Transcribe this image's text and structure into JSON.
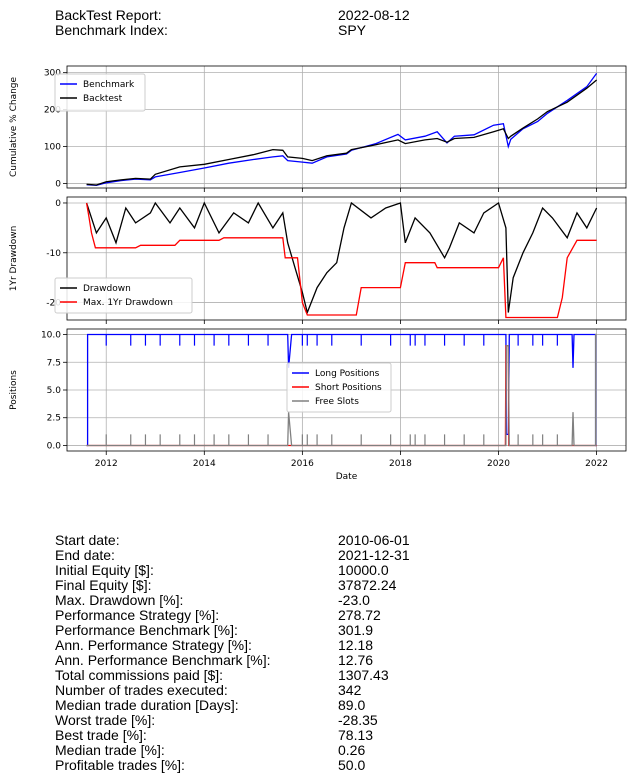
{
  "header": {
    "rows": [
      {
        "label": "BackTest Report:",
        "value": "2022-08-12"
      },
      {
        "label": "Benchmark Index:",
        "value": "SPY"
      }
    ]
  },
  "colors": {
    "benchmark": "#0000ff",
    "backtest": "#000000",
    "drawdown": "#000000",
    "max_drawdown": "#ff0000",
    "long": "#0000ff",
    "short": "#ff0000",
    "free": "#808080",
    "grid": "#b0b0b0"
  },
  "chart_data": [
    {
      "type": "line",
      "ylabel": "Cumulative % Change",
      "ylim": [
        -12,
        318
      ],
      "yticks": [
        0,
        100,
        200,
        300
      ],
      "grid": true,
      "legend": "top-left",
      "series": [
        {
          "name": "Benchmark",
          "color": "#0000ff",
          "points": [
            [
              2011.6,
              -3
            ],
            [
              2011.8,
              -5
            ],
            [
              2012.0,
              2
            ],
            [
              2012.3,
              8
            ],
            [
              2012.6,
              12
            ],
            [
              2012.9,
              10
            ],
            [
              2013.0,
              18
            ],
            [
              2013.5,
              30
            ],
            [
              2014.0,
              42
            ],
            [
              2014.5,
              55
            ],
            [
              2015.0,
              65
            ],
            [
              2015.4,
              72
            ],
            [
              2015.6,
              75
            ],
            [
              2015.7,
              62
            ],
            [
              2016.0,
              58
            ],
            [
              2016.2,
              55
            ],
            [
              2016.5,
              72
            ],
            [
              2016.9,
              80
            ],
            [
              2017.0,
              90
            ],
            [
              2017.5,
              108
            ],
            [
              2017.95,
              133
            ],
            [
              2018.1,
              118
            ],
            [
              2018.5,
              128
            ],
            [
              2018.75,
              140
            ],
            [
              2018.95,
              110
            ],
            [
              2019.1,
              128
            ],
            [
              2019.5,
              132
            ],
            [
              2019.9,
              158
            ],
            [
              2020.1,
              162
            ],
            [
              2020.2,
              100
            ],
            [
              2020.25,
              120
            ],
            [
              2020.5,
              148
            ],
            [
              2020.8,
              168
            ],
            [
              2021.0,
              190
            ],
            [
              2021.4,
              225
            ],
            [
              2021.8,
              262
            ],
            [
              2022.0,
              298
            ]
          ]
        },
        {
          "name": "Backtest",
          "color": "#000000",
          "points": [
            [
              2011.6,
              -2
            ],
            [
              2011.8,
              -4
            ],
            [
              2012.0,
              5
            ],
            [
              2012.3,
              10
            ],
            [
              2012.6,
              14
            ],
            [
              2012.9,
              12
            ],
            [
              2013.0,
              25
            ],
            [
              2013.5,
              45
            ],
            [
              2014.0,
              52
            ],
            [
              2014.5,
              65
            ],
            [
              2015.0,
              78
            ],
            [
              2015.4,
              92
            ],
            [
              2015.6,
              90
            ],
            [
              2015.7,
              72
            ],
            [
              2016.0,
              68
            ],
            [
              2016.2,
              62
            ],
            [
              2016.5,
              75
            ],
            [
              2016.9,
              82
            ],
            [
              2017.0,
              92
            ],
            [
              2017.5,
              105
            ],
            [
              2017.95,
              118
            ],
            [
              2018.1,
              108
            ],
            [
              2018.5,
              118
            ],
            [
              2018.75,
              122
            ],
            [
              2018.95,
              112
            ],
            [
              2019.1,
              122
            ],
            [
              2019.5,
              125
            ],
            [
              2019.9,
              140
            ],
            [
              2020.1,
              148
            ],
            [
              2020.2,
              122
            ],
            [
              2020.25,
              128
            ],
            [
              2020.5,
              150
            ],
            [
              2020.8,
              175
            ],
            [
              2021.0,
              195
            ],
            [
              2021.4,
              220
            ],
            [
              2021.8,
              258
            ],
            [
              2022.0,
              280
            ]
          ]
        }
      ]
    },
    {
      "type": "line",
      "ylabel": "1Yr Drawdown",
      "ylim": [
        -23.5,
        1.2
      ],
      "yticks": [
        0,
        -10,
        -20
      ],
      "grid": true,
      "legend": "bottom-left",
      "series": [
        {
          "name": "Drawdown",
          "color": "#000000",
          "points": [
            [
              2011.6,
              0
            ],
            [
              2011.8,
              -6
            ],
            [
              2012.0,
              -3
            ],
            [
              2012.2,
              -8
            ],
            [
              2012.4,
              -1
            ],
            [
              2012.6,
              -4
            ],
            [
              2012.9,
              -2
            ],
            [
              2013.0,
              0
            ],
            [
              2013.3,
              -4
            ],
            [
              2013.5,
              -1
            ],
            [
              2013.8,
              -5
            ],
            [
              2014.0,
              0
            ],
            [
              2014.3,
              -6
            ],
            [
              2014.6,
              -2
            ],
            [
              2014.9,
              -4
            ],
            [
              2015.1,
              0
            ],
            [
              2015.4,
              -5
            ],
            [
              2015.6,
              -2
            ],
            [
              2015.7,
              -8
            ],
            [
              2015.85,
              -13
            ],
            [
              2016.0,
              -18
            ],
            [
              2016.1,
              -22
            ],
            [
              2016.3,
              -17
            ],
            [
              2016.5,
              -14
            ],
            [
              2016.7,
              -12
            ],
            [
              2016.85,
              -5
            ],
            [
              2017.0,
              0
            ],
            [
              2017.4,
              -3
            ],
            [
              2017.7,
              -1
            ],
            [
              2018.0,
              0
            ],
            [
              2018.1,
              -8
            ],
            [
              2018.3,
              -3
            ],
            [
              2018.6,
              -6
            ],
            [
              2018.9,
              -11
            ],
            [
              2019.0,
              -9
            ],
            [
              2019.2,
              -4
            ],
            [
              2019.5,
              -6
            ],
            [
              2019.7,
              -2
            ],
            [
              2020.0,
              0
            ],
            [
              2020.15,
              -5
            ],
            [
              2020.2,
              -22
            ],
            [
              2020.3,
              -15
            ],
            [
              2020.5,
              -10
            ],
            [
              2020.7,
              -6
            ],
            [
              2020.9,
              -1
            ],
            [
              2021.1,
              -3
            ],
            [
              2021.4,
              -7
            ],
            [
              2021.6,
              -2
            ],
            [
              2021.8,
              -5
            ],
            [
              2022.0,
              -1
            ]
          ]
        },
        {
          "name": "Max. 1Yr Drawdown",
          "color": "#ff0000",
          "points": [
            [
              2011.6,
              0
            ],
            [
              2011.65,
              -3
            ],
            [
              2011.7,
              -6
            ],
            [
              2011.78,
              -9
            ],
            [
              2012.6,
              -9
            ],
            [
              2012.7,
              -8.5
            ],
            [
              2013.4,
              -8.5
            ],
            [
              2013.5,
              -7.5
            ],
            [
              2014.3,
              -7.5
            ],
            [
              2014.4,
              -7
            ],
            [
              2015.6,
              -7
            ],
            [
              2015.65,
              -11
            ],
            [
              2015.9,
              -11
            ],
            [
              2016.0,
              -20
            ],
            [
              2016.1,
              -22.5
            ],
            [
              2017.1,
              -22.5
            ],
            [
              2017.2,
              -17
            ],
            [
              2018.0,
              -17
            ],
            [
              2018.1,
              -12
            ],
            [
              2018.7,
              -12
            ],
            [
              2018.75,
              -13
            ],
            [
              2020.0,
              -13
            ],
            [
              2020.1,
              -11
            ],
            [
              2020.15,
              -23
            ],
            [
              2021.2,
              -23
            ],
            [
              2021.3,
              -19
            ],
            [
              2021.4,
              -11
            ],
            [
              2021.6,
              -7.5
            ],
            [
              2022.0,
              -7.5
            ]
          ]
        }
      ]
    },
    {
      "type": "line",
      "ylabel": "Positions",
      "xlabel": "Date",
      "ylim": [
        -0.5,
        10.5
      ],
      "yticks": [
        0.0,
        2.5,
        5.0,
        7.5,
        10.0
      ],
      "xticks": [
        "2012",
        "2014",
        "2016",
        "2018",
        "2020",
        "2022"
      ],
      "xlim": [
        2011.2,
        2022.6
      ],
      "grid": true,
      "legend": "center",
      "series": [
        {
          "name": "Long Positions",
          "color": "#0000ff",
          "points": [
            [
              2011.6,
              0
            ],
            [
              2011.62,
              0
            ],
            [
              2011.62,
              10
            ],
            [
              2015.7,
              10
            ],
            [
              2015.72,
              7
            ],
            [
              2015.78,
              10
            ],
            [
              2020.15,
              10
            ],
            [
              2020.16,
              1
            ],
            [
              2020.2,
              1
            ],
            [
              2020.22,
              10
            ],
            [
              2021.5,
              10
            ],
            [
              2021.52,
              7
            ],
            [
              2021.54,
              10
            ],
            [
              2021.98,
              10
            ],
            [
              2021.98,
              0
            ],
            [
              2022.0,
              0
            ]
          ],
          "dips": [
            2012.0,
            2012.5,
            2012.8,
            2013.1,
            2013.5,
            2013.8,
            2014.2,
            2014.5,
            2014.9,
            2015.3,
            2016.0,
            2016.1,
            2016.3,
            2016.6,
            2017.2,
            2017.8,
            2018.2,
            2018.3,
            2018.5,
            2018.9,
            2019.3,
            2019.7,
            2020.4,
            2020.7,
            2020.9,
            2021.2
          ]
        },
        {
          "name": "Short Positions",
          "color": "#ff0000",
          "points": [
            [
              2011.6,
              0
            ],
            [
              2020.14,
              0
            ],
            [
              2020.15,
              9
            ],
            [
              2020.2,
              9
            ],
            [
              2020.21,
              0
            ],
            [
              2022.0,
              0
            ]
          ]
        },
        {
          "name": "Free Slots",
          "color": "#808080",
          "points": [
            [
              2011.6,
              0
            ],
            [
              2011.62,
              0
            ],
            [
              2011.62,
              0
            ],
            [
              2015.7,
              0
            ],
            [
              2015.72,
              3
            ],
            [
              2015.78,
              0
            ],
            [
              2020.15,
              0
            ],
            [
              2020.16,
              9
            ],
            [
              2020.2,
              9
            ],
            [
              2020.22,
              0
            ],
            [
              2021.5,
              0
            ],
            [
              2021.52,
              3
            ],
            [
              2021.54,
              0
            ],
            [
              2021.98,
              0
            ],
            [
              2021.98,
              10
            ],
            [
              2022.0,
              10
            ]
          ],
          "spikes": [
            2012.0,
            2012.5,
            2012.8,
            2013.1,
            2013.5,
            2013.8,
            2014.2,
            2014.5,
            2014.9,
            2015.3,
            2016.0,
            2016.1,
            2016.3,
            2016.6,
            2017.2,
            2017.8,
            2018.2,
            2018.3,
            2018.5,
            2018.9,
            2019.3,
            2019.7,
            2020.4,
            2020.7,
            2020.9,
            2021.2
          ]
        }
      ]
    }
  ],
  "stats": [
    {
      "label": "Start date:",
      "value": "2010-06-01"
    },
    {
      "label": "End date:",
      "value": "2021-12-31"
    },
    {
      "label": "Initial Equity [$]:",
      "value": "10000.0"
    },
    {
      "label": "Final Equity [$]:",
      "value": "37872.24"
    },
    {
      "label": "Max. Drawdown [%]:",
      "value": "-23.0"
    },
    {
      "label": "Performance Strategy [%]:",
      "value": "278.72"
    },
    {
      "label": "Performance Benchmark [%]:",
      "value": "301.9"
    },
    {
      "label": "Ann. Performance Strategy [%]:",
      "value": "12.18"
    },
    {
      "label": "Ann. Performance Benchmark [%]:",
      "value": "12.76"
    },
    {
      "label": "Total commissions paid [$]:",
      "value": "1307.43"
    },
    {
      "label": "Number of trades executed:",
      "value": "342"
    },
    {
      "label": "Median trade duration [Days]:",
      "value": "89.0"
    },
    {
      "label": "Worst trade [%]:",
      "value": "-28.35"
    },
    {
      "label": "Best trade [%]:",
      "value": "78.13"
    },
    {
      "label": "Median trade [%]:",
      "value": "0.26"
    },
    {
      "label": "Profitable trades [%]:",
      "value": "50.0"
    }
  ]
}
